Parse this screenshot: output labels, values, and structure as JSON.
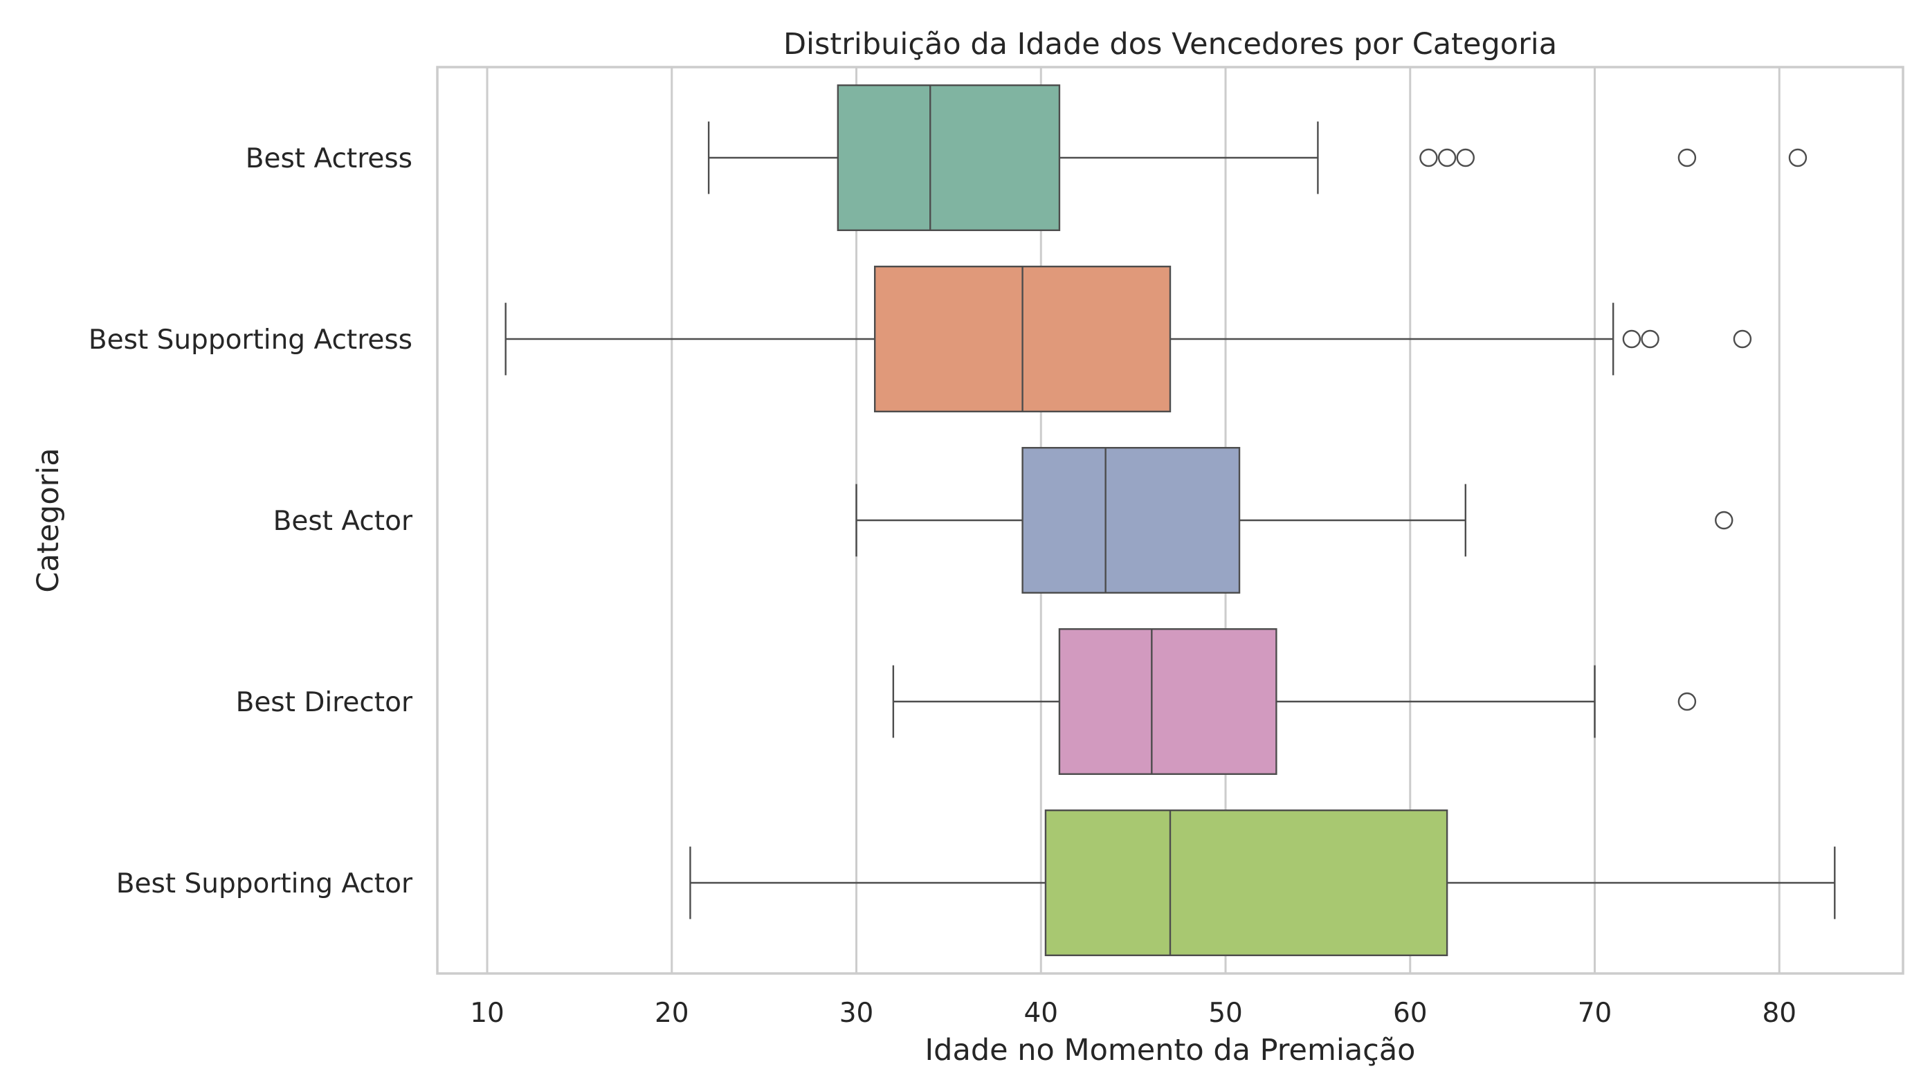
{
  "chart_data": {
    "type": "box",
    "orientation": "horizontal",
    "title": "Distribuição da Idade dos Vencedores por Categoria",
    "xlabel": "Idade no Momento da Premiação",
    "ylabel": "Categoria",
    "xlim": [
      7.3,
      86.7
    ],
    "xticks": [
      10,
      20,
      30,
      40,
      50,
      60,
      70,
      80
    ],
    "grid": "vertical",
    "legend": "none",
    "categories": [
      "Best Actress",
      "Best Supporting Actress",
      "Best Actor",
      "Best Director",
      "Best Supporting Actor"
    ],
    "series": [
      {
        "category": "Best Actress",
        "color": "#80b4a1",
        "whisker_low": 22,
        "q1": 29,
        "median": 34,
        "q3": 41,
        "whisker_high": 55,
        "outliers": [
          61,
          62,
          63,
          75,
          81
        ]
      },
      {
        "category": "Best Supporting Actress",
        "color": "#e0997a",
        "whisker_low": 11,
        "q1": 31,
        "median": 39,
        "q3": 47,
        "whisker_high": 71,
        "outliers": [
          72,
          73,
          78
        ]
      },
      {
        "category": "Best Actor",
        "color": "#98a5c4",
        "whisker_low": 30,
        "q1": 39,
        "median": 43.5,
        "q3": 50.75,
        "whisker_high": 63,
        "outliers": [
          77
        ]
      },
      {
        "category": "Best Director",
        "color": "#d29abf",
        "whisker_low": 32,
        "q1": 41,
        "median": 46,
        "q3": 52.75,
        "whisker_high": 70,
        "outliers": [
          75
        ]
      },
      {
        "category": "Best Supporting Actor",
        "color": "#a8c871",
        "whisker_low": 21,
        "q1": 40.25,
        "median": 47,
        "q3": 62,
        "whisker_high": 83,
        "outliers": []
      }
    ]
  }
}
